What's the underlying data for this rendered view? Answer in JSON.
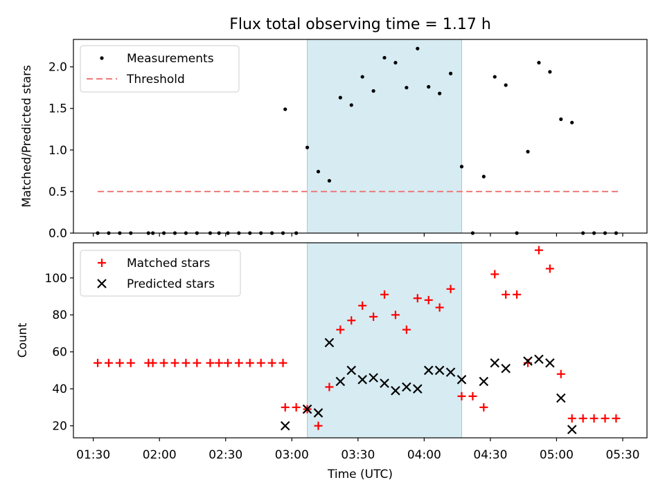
{
  "chart_data": [
    {
      "type": "scatter",
      "title": "Flux total observing time = 1.17 h",
      "xlabel": "",
      "ylabel": "Matched/Predicted stars",
      "ylim": [
        0,
        2.33
      ],
      "xlim_minutes": [
        81,
        341
      ],
      "yticks": [
        "0.0",
        "0.5",
        "1.0",
        "1.5",
        "2.0"
      ],
      "shaded_span": {
        "start": "03:07",
        "end": "04:17",
        "color": "#add8e6"
      },
      "legend": [
        "Measurements",
        "Threshold"
      ],
      "threshold": {
        "value": 0.5,
        "x_start": "01:32",
        "x_end": "05:28",
        "color": "#f08080"
      },
      "series": [
        {
          "name": "Measurements",
          "marker": "dot",
          "color": "#000000",
          "x": [
            "01:32",
            "01:37",
            "01:42",
            "01:47",
            "01:55",
            "01:57",
            "02:02",
            "02:07",
            "02:12",
            "02:17",
            "02:23",
            "02:27",
            "02:31",
            "02:36",
            "02:41",
            "02:46",
            "02:51",
            "02:56",
            "02:57",
            "03:02",
            "03:07",
            "03:12",
            "03:17",
            "03:22",
            "03:27",
            "03:32",
            "03:37",
            "03:42",
            "03:47",
            "03:52",
            "03:57",
            "04:02",
            "04:07",
            "04:12",
            "04:17",
            "04:22",
            "04:27",
            "04:32",
            "04:37",
            "04:42",
            "04:47",
            "04:52",
            "04:57",
            "05:02",
            "05:07",
            "05:12",
            "05:17",
            "05:22",
            "05:27"
          ],
          "y": [
            0,
            0,
            0,
            0,
            0,
            0,
            0,
            0,
            0,
            0,
            0,
            0,
            0,
            0,
            0,
            0,
            0,
            0,
            1.49,
            0,
            1.03,
            0.74,
            0.63,
            1.63,
            1.54,
            1.88,
            1.71,
            2.11,
            2.05,
            1.75,
            2.22,
            1.76,
            1.68,
            1.92,
            0.8,
            0,
            0.68,
            1.88,
            1.78,
            0,
            0.98,
            2.05,
            1.94,
            1.37,
            1.33,
            0,
            0,
            0,
            0
          ]
        }
      ]
    },
    {
      "type": "scatter",
      "title": "",
      "xlabel": "Time (UTC)",
      "ylabel": "Count",
      "ylim": [
        13.5,
        119
      ],
      "xlim_minutes": [
        81,
        341
      ],
      "yticks": [
        "20",
        "40",
        "60",
        "80",
        "100"
      ],
      "xticks": [
        "01:30",
        "02:00",
        "02:30",
        "03:00",
        "03:30",
        "04:00",
        "04:30",
        "05:00",
        "05:30"
      ],
      "shaded_span": {
        "start": "03:07",
        "end": "04:17",
        "color": "#add8e6"
      },
      "legend": [
        "Matched stars",
        "Predicted stars"
      ],
      "series": [
        {
          "name": "Matched stars",
          "marker": "plus",
          "color": "#ff0000",
          "x": [
            "01:32",
            "01:37",
            "01:42",
            "01:47",
            "01:55",
            "01:57",
            "02:02",
            "02:07",
            "02:12",
            "02:17",
            "02:23",
            "02:27",
            "02:31",
            "02:36",
            "02:41",
            "02:46",
            "02:51",
            "02:56",
            "02:57",
            "03:02",
            "03:07",
            "03:12",
            "03:17",
            "03:22",
            "03:27",
            "03:32",
            "03:37",
            "03:42",
            "03:47",
            "03:52",
            "03:57",
            "04:02",
            "04:07",
            "04:12",
            "04:17",
            "04:22",
            "04:27",
            "04:32",
            "04:37",
            "04:42",
            "04:47",
            "04:52",
            "04:57",
            "05:02",
            "05:07",
            "05:12",
            "05:17",
            "05:22",
            "05:27"
          ],
          "y": [
            54,
            54,
            54,
            54,
            54,
            54,
            54,
            54,
            54,
            54,
            54,
            54,
            54,
            54,
            54,
            54,
            54,
            54,
            30,
            30,
            29,
            20,
            41,
            72,
            77,
            85,
            79,
            91,
            80,
            72,
            89,
            88,
            84,
            94,
            36,
            36,
            30,
            102,
            91,
            91,
            54,
            115,
            105,
            48,
            24,
            24,
            24,
            24,
            24
          ]
        },
        {
          "name": "Predicted stars",
          "marker": "x",
          "color": "#000000",
          "x": [
            "02:57",
            "03:07",
            "03:12",
            "03:17",
            "03:22",
            "03:27",
            "03:32",
            "03:37",
            "03:42",
            "03:47",
            "03:52",
            "03:57",
            "04:02",
            "04:07",
            "04:12",
            "04:17",
            "04:27",
            "04:32",
            "04:37",
            "04:47",
            "04:52",
            "04:57",
            "05:02",
            "05:07"
          ],
          "y": [
            20,
            29,
            27,
            65,
            44,
            50,
            45,
            46,
            43,
            39,
            41,
            40,
            50,
            50,
            49,
            45,
            44,
            54,
            51,
            55,
            56,
            54,
            35,
            18
          ]
        }
      ]
    }
  ]
}
